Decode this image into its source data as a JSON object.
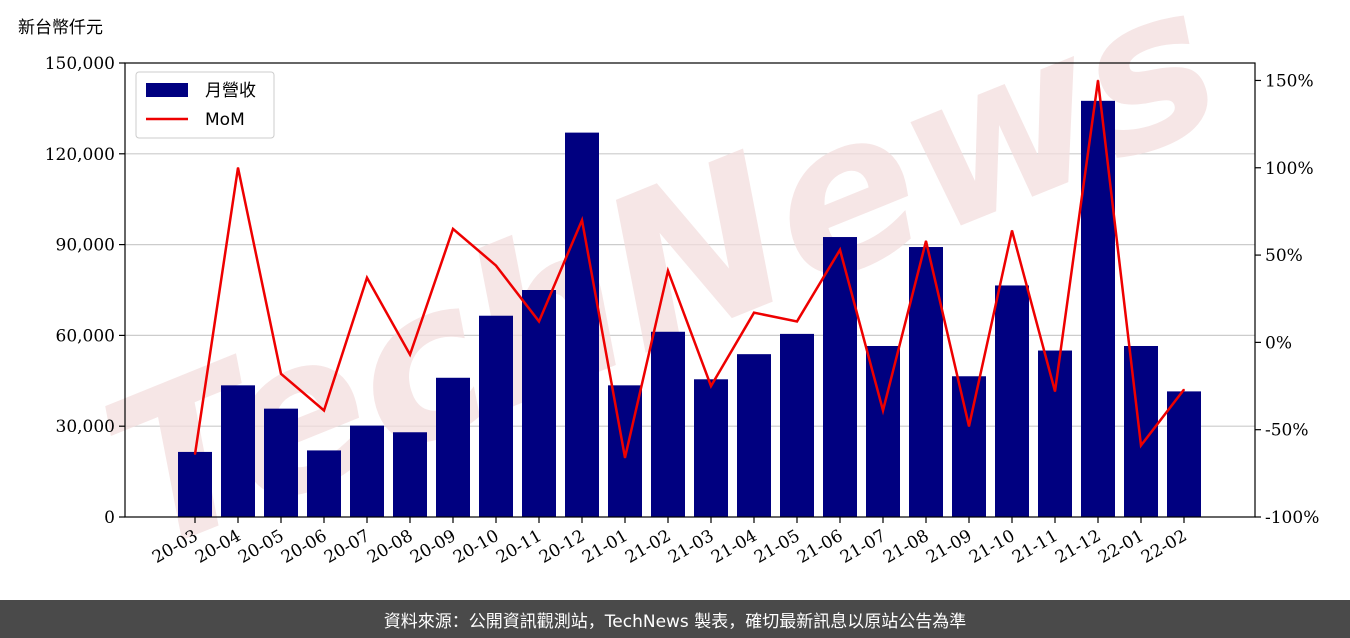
{
  "unit_label": "新台幣仟元",
  "watermark": "TechNews",
  "footer_text": "資料來源：公開資訊觀測站，TechNews 製表，確切最新訊息以原站公告為準",
  "colors": {
    "bar": "#000080",
    "line": "#ee0000",
    "grid": "#cccccc",
    "footer_bg": "#4a4a4a",
    "watermark": "#f3dede"
  },
  "chart_data": {
    "type": "bar",
    "categories": [
      "20-03",
      "20-04",
      "20-05",
      "20-06",
      "20-07",
      "20-08",
      "20-09",
      "20-10",
      "20-11",
      "20-12",
      "21-01",
      "21-02",
      "21-03",
      "21-04",
      "21-05",
      "21-06",
      "21-07",
      "21-08",
      "21-09",
      "21-10",
      "21-11",
      "21-12",
      "22-01",
      "22-02"
    ],
    "series": [
      {
        "name": "月營收",
        "type": "bar",
        "axis": "left",
        "values": [
          21500,
          43500,
          35800,
          22000,
          30200,
          28000,
          46000,
          66500,
          75000,
          127000,
          43500,
          61200,
          45500,
          53800,
          60500,
          92500,
          56500,
          89200,
          46500,
          76500,
          55000,
          137500,
          56500,
          41500
        ]
      },
      {
        "name": "MoM",
        "type": "line",
        "axis": "right",
        "values": [
          -64,
          100,
          -18,
          -39,
          37,
          -7,
          65,
          44,
          12,
          70,
          -66,
          41,
          -25,
          17,
          12,
          53,
          -39,
          58,
          -48,
          64,
          -28,
          150,
          -59,
          -27
        ]
      }
    ],
    "y_left": {
      "min": 0,
      "max": 150000,
      "ticks": [
        0,
        30000,
        60000,
        90000,
        120000,
        150000
      ],
      "tick_labels": [
        "0",
        "30,000",
        "60,000",
        "90,000",
        "120,000",
        "150,000"
      ]
    },
    "y_right": {
      "min": -100,
      "max": 160,
      "ticks": [
        -100,
        -50,
        0,
        50,
        100,
        150
      ],
      "tick_labels": [
        "-100%",
        "-50%",
        "0%",
        "50%",
        "100%",
        "150%"
      ]
    },
    "grid": "horizontal",
    "legend_position": "top-left"
  }
}
